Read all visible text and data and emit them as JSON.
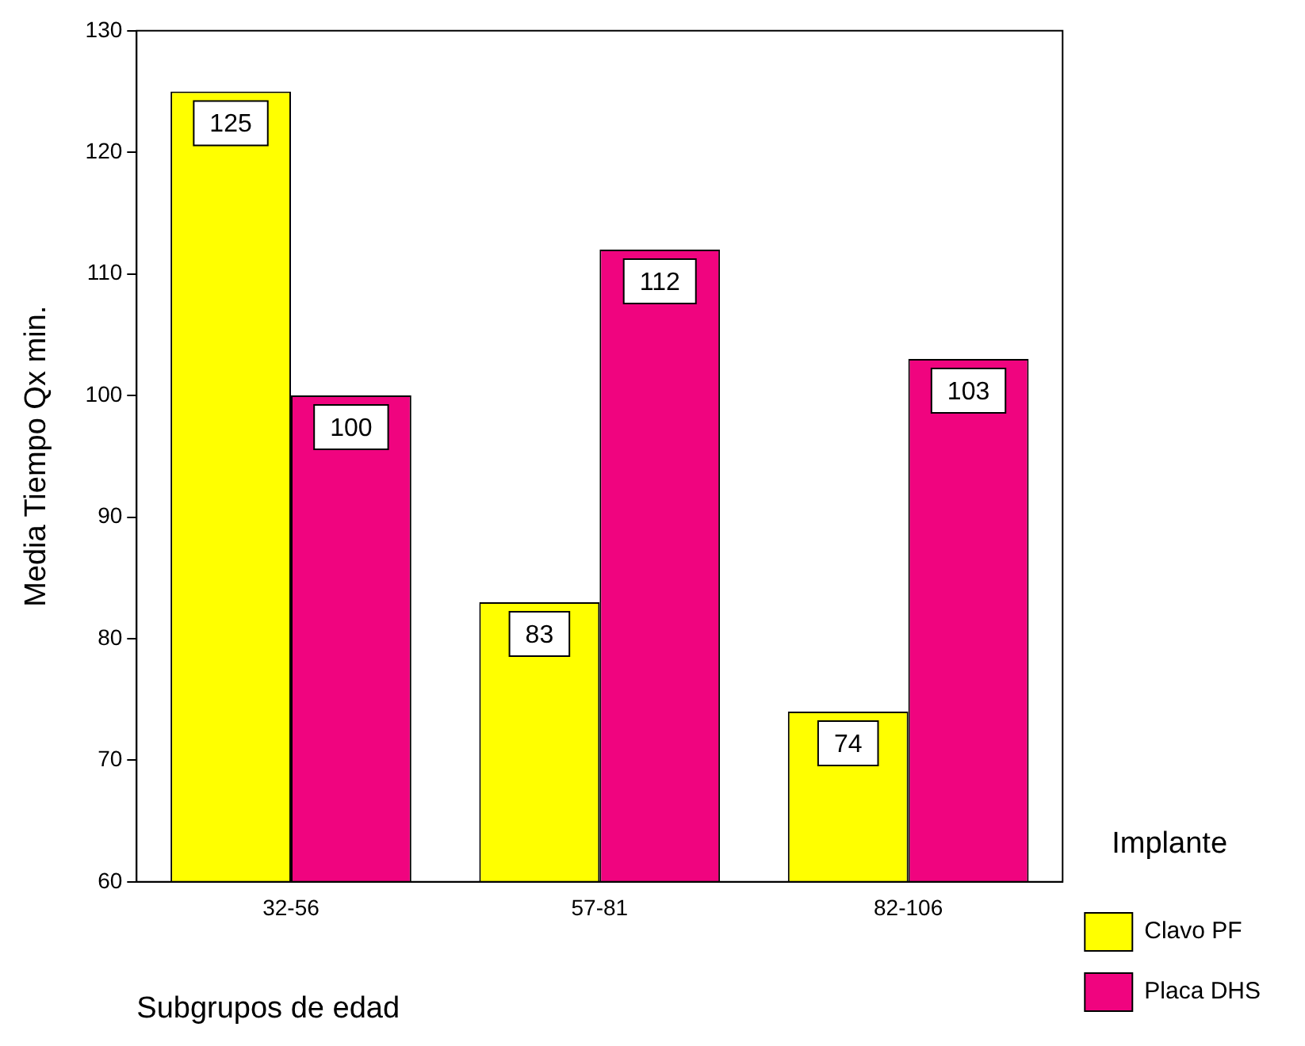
{
  "chart_data": {
    "type": "bar",
    "xlabel": "Subgrupos de edad",
    "ylabel": "Media Tiempo Qx min.",
    "legend_title": "Implante",
    "categories": [
      "32-56",
      "57-81",
      "82-106"
    ],
    "series": [
      {
        "name": "Clavo PF",
        "color": "#ffff00",
        "values": [
          125,
          83,
          74
        ]
      },
      {
        "name": "Placa DHS",
        "color": "#f0047f",
        "values": [
          100,
          112,
          103
        ]
      }
    ],
    "ylim": [
      60,
      130
    ],
    "yticks": [
      60,
      70,
      80,
      90,
      100,
      110,
      120,
      130
    ],
    "grid": false,
    "legend": "bottom right",
    "data_labels": true
  }
}
